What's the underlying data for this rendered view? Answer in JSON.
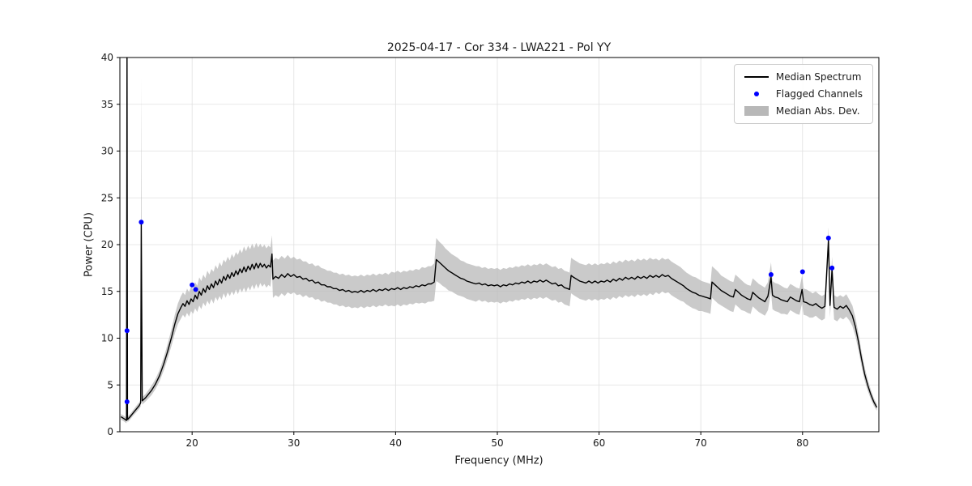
{
  "chart_data": {
    "type": "line",
    "title": "2025-04-17 - Cor 334 - LWA221 - Pol YY",
    "xlabel": "Frequency (MHz)",
    "ylabel": "Power (CPU)",
    "xlim": [
      12.9,
      87.5
    ],
    "ylim": [
      0,
      40
    ],
    "xticks": [
      20,
      30,
      40,
      50,
      60,
      70,
      80
    ],
    "yticks": [
      0,
      5,
      10,
      15,
      20,
      25,
      30,
      35,
      40
    ],
    "grid": true,
    "colors": {
      "median": "#000000",
      "flagged": "#0000ff",
      "mad_fill": "#b8b8b8",
      "grid": "#e0e0e0",
      "spine": "#000000"
    },
    "legend": {
      "position": "upper right",
      "entries": [
        {
          "label": "Median Spectrum",
          "type": "line",
          "color": "#000000"
        },
        {
          "label": "Flagged Channels",
          "type": "marker",
          "color": "#0000ff"
        },
        {
          "label": "Median Abs. Dev.",
          "type": "patch",
          "color": "#b8b8b8"
        }
      ]
    },
    "series": {
      "format": "median_points are [frequency_MHz, power_CPU, median_abs_dev]; flagged are [frequency_MHz, power_CPU]",
      "median_points": [
        [
          13.0,
          1.6,
          0.3
        ],
        [
          13.3,
          1.4,
          0.3
        ],
        [
          13.55,
          1.2,
          0.3
        ],
        [
          13.6,
          42.0,
          0.3
        ],
        [
          13.65,
          1.3,
          0.3
        ],
        [
          13.9,
          1.6,
          0.3
        ],
        [
          14.2,
          2.0,
          0.3
        ],
        [
          14.5,
          2.4,
          0.35
        ],
        [
          14.8,
          2.8,
          0.35
        ],
        [
          14.95,
          3.1,
          0.4
        ],
        [
          15.0,
          22.3,
          15.5
        ],
        [
          15.1,
          3.3,
          0.4
        ],
        [
          15.4,
          3.6,
          0.4
        ],
        [
          15.7,
          4.0,
          0.45
        ],
        [
          16.0,
          4.4,
          0.5
        ],
        [
          16.4,
          5.1,
          0.55
        ],
        [
          16.8,
          6.0,
          0.6
        ],
        [
          17.2,
          7.2,
          0.7
        ],
        [
          17.6,
          8.6,
          0.8
        ],
        [
          18.0,
          10.2,
          0.9
        ],
        [
          18.3,
          11.5,
          1.0
        ],
        [
          18.6,
          12.6,
          1.1
        ],
        [
          18.9,
          13.3,
          1.2
        ],
        [
          19.1,
          13.7,
          1.2
        ],
        [
          19.3,
          13.4,
          1.2
        ],
        [
          19.5,
          14.0,
          1.3
        ],
        [
          19.7,
          13.6,
          1.3
        ],
        [
          19.9,
          14.2,
          1.3
        ],
        [
          20.1,
          13.9,
          1.3
        ],
        [
          20.3,
          14.6,
          1.4
        ],
        [
          20.5,
          14.2,
          1.4
        ],
        [
          20.7,
          15.0,
          1.5
        ],
        [
          20.9,
          14.6,
          1.5
        ],
        [
          21.1,
          15.3,
          1.5
        ],
        [
          21.3,
          14.9,
          1.5
        ],
        [
          21.5,
          15.6,
          1.6
        ],
        [
          21.7,
          15.2,
          1.6
        ],
        [
          21.9,
          15.8,
          1.6
        ],
        [
          22.1,
          15.4,
          1.7
        ],
        [
          22.3,
          16.1,
          1.7
        ],
        [
          22.5,
          15.7,
          1.7
        ],
        [
          22.7,
          16.3,
          1.8
        ],
        [
          22.9,
          15.9,
          1.8
        ],
        [
          23.1,
          16.6,
          1.8
        ],
        [
          23.3,
          16.2,
          1.9
        ],
        [
          23.5,
          16.8,
          1.9
        ],
        [
          23.7,
          16.4,
          1.9
        ],
        [
          23.9,
          17.0,
          2.0
        ],
        [
          24.1,
          16.6,
          2.0
        ],
        [
          24.3,
          17.2,
          2.0
        ],
        [
          24.5,
          16.8,
          2.1
        ],
        [
          24.7,
          17.4,
          2.1
        ],
        [
          24.9,
          17.0,
          2.1
        ],
        [
          25.1,
          17.6,
          2.2
        ],
        [
          25.3,
          17.1,
          2.2
        ],
        [
          25.5,
          17.7,
          2.2
        ],
        [
          25.7,
          17.3,
          2.2
        ],
        [
          25.9,
          17.9,
          2.2
        ],
        [
          26.1,
          17.4,
          2.2
        ],
        [
          26.3,
          18.0,
          2.2
        ],
        [
          26.5,
          17.5,
          2.2
        ],
        [
          26.7,
          18.0,
          2.1
        ],
        [
          26.9,
          17.6,
          2.1
        ],
        [
          27.1,
          17.9,
          2.1
        ],
        [
          27.3,
          17.5,
          2.1
        ],
        [
          27.5,
          17.8,
          2.1
        ],
        [
          27.7,
          17.6,
          2.1
        ],
        [
          27.85,
          19.0,
          2.0
        ],
        [
          27.95,
          16.3,
          2.0
        ],
        [
          28.2,
          16.6,
          2.0
        ],
        [
          28.5,
          16.4,
          2.0
        ],
        [
          28.8,
          16.8,
          2.0
        ],
        [
          29.1,
          16.5,
          2.0
        ],
        [
          29.4,
          16.9,
          2.0
        ],
        [
          29.7,
          16.6,
          1.9
        ],
        [
          30.0,
          16.8,
          1.9
        ],
        [
          30.3,
          16.5,
          1.9
        ],
        [
          30.6,
          16.6,
          1.9
        ],
        [
          30.9,
          16.3,
          1.9
        ],
        [
          31.2,
          16.4,
          1.8
        ],
        [
          31.5,
          16.1,
          1.8
        ],
        [
          31.8,
          16.2,
          1.8
        ],
        [
          32.1,
          15.9,
          1.8
        ],
        [
          32.4,
          16.0,
          1.8
        ],
        [
          32.7,
          15.7,
          1.8
        ],
        [
          33.0,
          15.7,
          1.7
        ],
        [
          33.3,
          15.5,
          1.7
        ],
        [
          33.6,
          15.5,
          1.7
        ],
        [
          33.9,
          15.3,
          1.7
        ],
        [
          34.2,
          15.3,
          1.7
        ],
        [
          34.5,
          15.1,
          1.7
        ],
        [
          34.8,
          15.2,
          1.7
        ],
        [
          35.1,
          15.0,
          1.7
        ],
        [
          35.4,
          15.1,
          1.7
        ],
        [
          35.7,
          14.9,
          1.7
        ],
        [
          36.0,
          15.0,
          1.7
        ],
        [
          36.3,
          14.9,
          1.7
        ],
        [
          36.6,
          15.1,
          1.7
        ],
        [
          36.9,
          14.9,
          1.7
        ],
        [
          37.2,
          15.1,
          1.7
        ],
        [
          37.5,
          15.0,
          1.7
        ],
        [
          37.8,
          15.2,
          1.7
        ],
        [
          38.1,
          15.0,
          1.7
        ],
        [
          38.4,
          15.2,
          1.7
        ],
        [
          38.7,
          15.1,
          1.7
        ],
        [
          39.0,
          15.3,
          1.7
        ],
        [
          39.3,
          15.1,
          1.7
        ],
        [
          39.6,
          15.3,
          1.8
        ],
        [
          39.9,
          15.2,
          1.8
        ],
        [
          40.2,
          15.4,
          1.8
        ],
        [
          40.5,
          15.2,
          1.8
        ],
        [
          40.8,
          15.4,
          1.8
        ],
        [
          41.1,
          15.3,
          1.8
        ],
        [
          41.4,
          15.5,
          1.8
        ],
        [
          41.7,
          15.4,
          1.8
        ],
        [
          42.0,
          15.6,
          1.8
        ],
        [
          42.3,
          15.5,
          1.8
        ],
        [
          42.6,
          15.7,
          1.9
        ],
        [
          42.9,
          15.6,
          1.9
        ],
        [
          43.2,
          15.8,
          1.9
        ],
        [
          43.5,
          15.8,
          1.9
        ],
        [
          43.8,
          16.0,
          2.0
        ],
        [
          44.0,
          18.4,
          2.3
        ],
        [
          44.3,
          18.1,
          2.2
        ],
        [
          44.6,
          17.8,
          2.2
        ],
        [
          44.9,
          17.5,
          2.1
        ],
        [
          45.2,
          17.2,
          2.1
        ],
        [
          45.5,
          17.0,
          2.0
        ],
        [
          45.8,
          16.8,
          2.0
        ],
        [
          46.1,
          16.6,
          2.0
        ],
        [
          46.4,
          16.4,
          1.9
        ],
        [
          46.7,
          16.3,
          1.9
        ],
        [
          47.0,
          16.1,
          1.9
        ],
        [
          47.3,
          16.0,
          1.9
        ],
        [
          47.6,
          15.9,
          1.9
        ],
        [
          47.9,
          15.8,
          1.9
        ],
        [
          48.2,
          15.9,
          1.8
        ],
        [
          48.5,
          15.7,
          1.8
        ],
        [
          48.8,
          15.8,
          1.8
        ],
        [
          49.1,
          15.6,
          1.8
        ],
        [
          49.4,
          15.7,
          1.8
        ],
        [
          49.7,
          15.6,
          1.8
        ],
        [
          50.0,
          15.7,
          1.8
        ],
        [
          50.3,
          15.5,
          1.8
        ],
        [
          50.6,
          15.7,
          1.8
        ],
        [
          50.9,
          15.6,
          1.8
        ],
        [
          51.2,
          15.8,
          1.8
        ],
        [
          51.5,
          15.7,
          1.8
        ],
        [
          51.8,
          15.9,
          1.8
        ],
        [
          52.1,
          15.8,
          1.8
        ],
        [
          52.4,
          16.0,
          1.8
        ],
        [
          52.7,
          15.9,
          1.8
        ],
        [
          53.0,
          16.1,
          1.8
        ],
        [
          53.3,
          15.9,
          1.8
        ],
        [
          53.6,
          16.1,
          1.8
        ],
        [
          53.9,
          16.0,
          1.8
        ],
        [
          54.2,
          16.2,
          1.8
        ],
        [
          54.5,
          16.0,
          1.8
        ],
        [
          54.8,
          16.2,
          1.8
        ],
        [
          55.1,
          16.0,
          1.8
        ],
        [
          55.4,
          15.8,
          1.8
        ],
        [
          55.7,
          15.9,
          1.8
        ],
        [
          56.0,
          15.6,
          1.8
        ],
        [
          56.3,
          15.7,
          1.8
        ],
        [
          56.6,
          15.4,
          1.8
        ],
        [
          56.9,
          15.3,
          1.8
        ],
        [
          57.1,
          15.2,
          1.8
        ],
        [
          57.25,
          16.7,
          1.9
        ],
        [
          57.5,
          16.5,
          1.9
        ],
        [
          57.8,
          16.3,
          1.9
        ],
        [
          58.1,
          16.1,
          1.9
        ],
        [
          58.4,
          16.0,
          1.9
        ],
        [
          58.7,
          15.9,
          1.9
        ],
        [
          59.0,
          16.1,
          1.9
        ],
        [
          59.3,
          15.9,
          1.9
        ],
        [
          59.6,
          16.1,
          1.9
        ],
        [
          59.9,
          15.9,
          1.9
        ],
        [
          60.2,
          16.1,
          1.9
        ],
        [
          60.5,
          16.0,
          1.9
        ],
        [
          60.8,
          16.2,
          1.9
        ],
        [
          61.1,
          16.0,
          1.9
        ],
        [
          61.4,
          16.3,
          1.9
        ],
        [
          61.7,
          16.1,
          1.9
        ],
        [
          62.0,
          16.4,
          1.9
        ],
        [
          62.3,
          16.2,
          1.9
        ],
        [
          62.6,
          16.5,
          1.9
        ],
        [
          62.9,
          16.3,
          1.9
        ],
        [
          63.2,
          16.5,
          1.9
        ],
        [
          63.5,
          16.3,
          1.9
        ],
        [
          63.8,
          16.6,
          1.9
        ],
        [
          64.1,
          16.4,
          1.9
        ],
        [
          64.4,
          16.6,
          1.9
        ],
        [
          64.7,
          16.4,
          1.9
        ],
        [
          65.0,
          16.7,
          1.9
        ],
        [
          65.3,
          16.5,
          1.9
        ],
        [
          65.6,
          16.7,
          1.8
        ],
        [
          65.9,
          16.5,
          1.8
        ],
        [
          66.2,
          16.8,
          1.8
        ],
        [
          66.5,
          16.6,
          1.8
        ],
        [
          66.8,
          16.7,
          1.8
        ],
        [
          67.1,
          16.4,
          1.8
        ],
        [
          67.4,
          16.2,
          1.8
        ],
        [
          67.7,
          16.0,
          1.8
        ],
        [
          68.0,
          15.8,
          1.8
        ],
        [
          68.3,
          15.6,
          1.7
        ],
        [
          68.6,
          15.3,
          1.7
        ],
        [
          68.9,
          15.1,
          1.7
        ],
        [
          69.2,
          14.9,
          1.7
        ],
        [
          69.5,
          14.8,
          1.7
        ],
        [
          69.8,
          14.6,
          1.7
        ],
        [
          70.1,
          14.5,
          1.6
        ],
        [
          70.4,
          14.4,
          1.6
        ],
        [
          70.7,
          14.3,
          1.6
        ],
        [
          70.95,
          14.2,
          1.6
        ],
        [
          71.1,
          16.0,
          1.7
        ],
        [
          71.4,
          15.7,
          1.7
        ],
        [
          71.7,
          15.4,
          1.7
        ],
        [
          72.0,
          15.1,
          1.6
        ],
        [
          72.3,
          14.9,
          1.6
        ],
        [
          72.6,
          14.7,
          1.6
        ],
        [
          72.9,
          14.5,
          1.6
        ],
        [
          73.2,
          14.4,
          1.6
        ],
        [
          73.4,
          15.2,
          1.6
        ],
        [
          73.7,
          14.9,
          1.6
        ],
        [
          74.0,
          14.6,
          1.6
        ],
        [
          74.3,
          14.4,
          1.5
        ],
        [
          74.6,
          14.2,
          1.5
        ],
        [
          74.9,
          14.1,
          1.5
        ],
        [
          75.1,
          14.9,
          1.5
        ],
        [
          75.4,
          14.6,
          1.5
        ],
        [
          75.7,
          14.3,
          1.5
        ],
        [
          76.0,
          14.1,
          1.5
        ],
        [
          76.3,
          13.9,
          1.5
        ],
        [
          76.6,
          14.5,
          1.5
        ],
        [
          76.9,
          16.5,
          1.6
        ],
        [
          77.05,
          14.6,
          1.5
        ],
        [
          77.3,
          14.4,
          1.5
        ],
        [
          77.6,
          14.3,
          1.5
        ],
        [
          77.9,
          14.1,
          1.5
        ],
        [
          78.2,
          14.0,
          1.4
        ],
        [
          78.5,
          13.9,
          1.4
        ],
        [
          78.8,
          14.4,
          1.4
        ],
        [
          79.1,
          14.2,
          1.4
        ],
        [
          79.4,
          14.0,
          1.4
        ],
        [
          79.7,
          13.9,
          1.4
        ],
        [
          79.95,
          15.2,
          1.5
        ],
        [
          80.1,
          13.9,
          1.4
        ],
        [
          80.4,
          13.8,
          1.4
        ],
        [
          80.7,
          13.6,
          1.4
        ],
        [
          81.0,
          13.5,
          1.3
        ],
        [
          81.3,
          13.7,
          1.3
        ],
        [
          81.6,
          13.4,
          1.3
        ],
        [
          81.9,
          13.2,
          1.3
        ],
        [
          82.2,
          13.4,
          1.3
        ],
        [
          82.55,
          20.5,
          1.4
        ],
        [
          82.7,
          13.5,
          1.3
        ],
        [
          82.9,
          17.4,
          1.3
        ],
        [
          83.1,
          13.3,
          1.3
        ],
        [
          83.4,
          13.1,
          1.3
        ],
        [
          83.7,
          13.4,
          1.2
        ],
        [
          84.0,
          13.2,
          1.2
        ],
        [
          84.3,
          13.5,
          1.2
        ],
        [
          84.6,
          13.0,
          1.1
        ],
        [
          84.9,
          12.4,
          1.1
        ],
        [
          85.2,
          11.2,
          1.0
        ],
        [
          85.5,
          9.6,
          0.9
        ],
        [
          85.8,
          7.8,
          0.8
        ],
        [
          86.1,
          6.2,
          0.7
        ],
        [
          86.4,
          5.0,
          0.6
        ],
        [
          86.7,
          4.0,
          0.5
        ],
        [
          87.0,
          3.2,
          0.4
        ],
        [
          87.3,
          2.6,
          0.35
        ]
      ],
      "flagged": [
        [
          13.6,
          10.8
        ],
        [
          13.6,
          3.2
        ],
        [
          15.0,
          22.4
        ],
        [
          20.0,
          15.7
        ],
        [
          20.35,
          15.2
        ],
        [
          76.9,
          16.8
        ],
        [
          80.0,
          17.1
        ],
        [
          82.55,
          20.7
        ],
        [
          82.9,
          17.5
        ]
      ]
    }
  }
}
